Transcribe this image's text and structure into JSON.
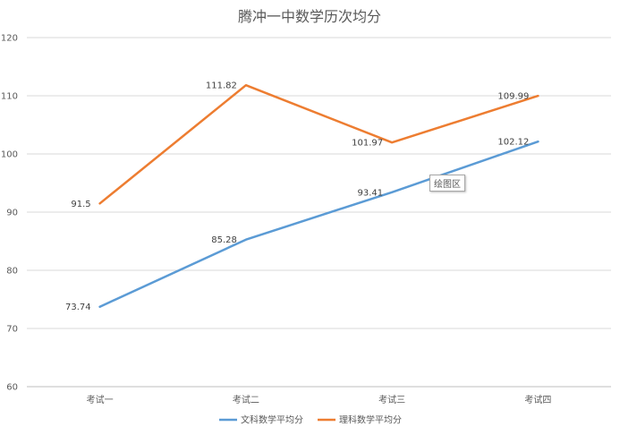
{
  "chart_data": {
    "type": "line",
    "title": "腾冲一中数学历次均分",
    "categories": [
      "考试一",
      "考试二",
      "考试三",
      "考试四"
    ],
    "ylim": [
      60,
      120
    ],
    "yticks": [
      60,
      70,
      80,
      90,
      100,
      110,
      120
    ],
    "grid": true,
    "legend_position": "bottom",
    "series": [
      {
        "name": "文科数学平均分",
        "color": "#5b9bd5",
        "values": [
          73.74,
          85.28,
          93.41,
          102.12
        ],
        "labels": [
          "73.74",
          "85.28",
          "93.41",
          "102.12"
        ]
      },
      {
        "name": "理科数学平均分",
        "color": "#ed7d31",
        "values": [
          91.5,
          111.82,
          101.97,
          109.99
        ],
        "labels": [
          "91.5",
          "111.82",
          "101.97",
          "109.99"
        ]
      }
    ]
  },
  "tooltip": {
    "text": "绘图区"
  }
}
